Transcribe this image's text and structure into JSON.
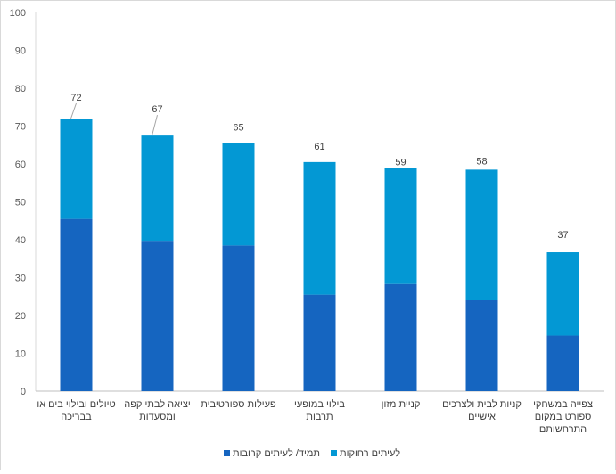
{
  "chart_data": {
    "type": "bar",
    "stacked": true,
    "categories": [
      [
        "טיולים ובילוי בים או",
        "בבריכה"
      ],
      [
        "יציאה לבתי קפה",
        "ומסעדות"
      ],
      [
        "פעילות ספורטיבית"
      ],
      [
        "בילוי במופעי",
        "תרבות"
      ],
      [
        "קניית מזון"
      ],
      [
        "קניות לבית ולצרכים",
        "אישיים"
      ],
      [
        "צפייה במשחקי",
        "ספורט במקום",
        "התרחשותם"
      ]
    ],
    "series": [
      {
        "name": "תמיד/ לעיתים קרובות",
        "color": "#1565c0",
        "values": [
          45.5,
          39.5,
          38.5,
          25.5,
          28.3,
          24,
          14.7
        ]
      },
      {
        "name": "לעיתים רחוקות",
        "color": "#0398d4",
        "values": [
          26.5,
          28,
          27,
          35,
          30.7,
          34.5,
          22
        ]
      }
    ],
    "totals": [
      "72",
      "67",
      "65",
      "61",
      "59",
      "58",
      "37"
    ],
    "ylim": [
      0,
      100
    ],
    "yticks": [
      "0",
      "10",
      "20",
      "30",
      "40",
      "50",
      "60",
      "70",
      "80",
      "90",
      "100"
    ],
    "grid": false,
    "legend": "bottom-center"
  }
}
